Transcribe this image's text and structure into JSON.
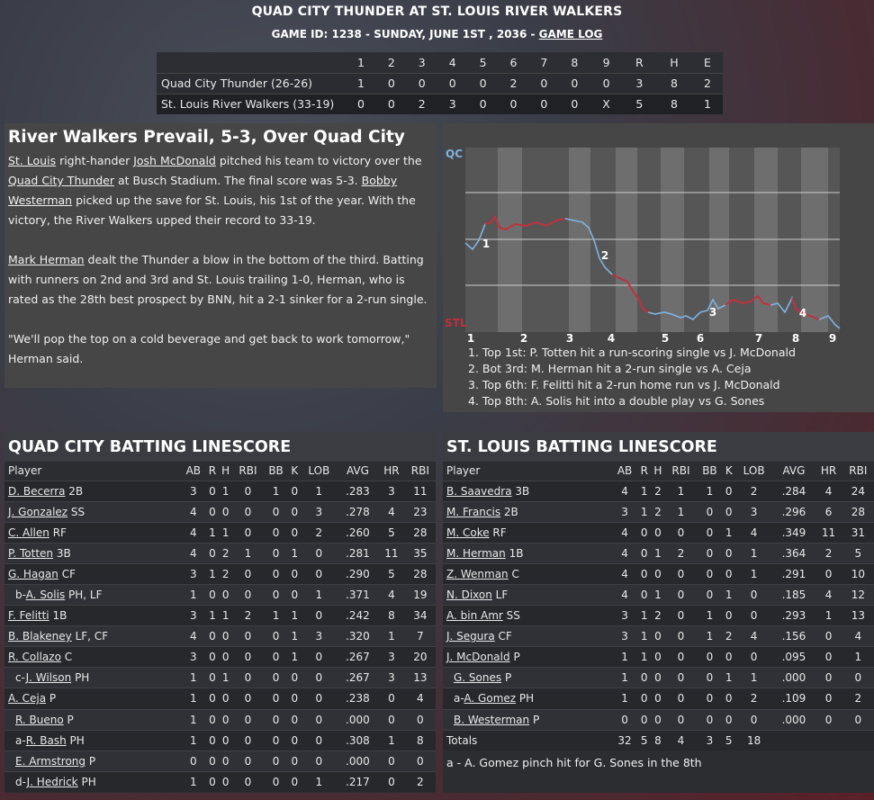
{
  "header": {
    "title": "QUAD CITY THUNDER AT ST. LOUIS RIVER WALKERS",
    "subtitle": "GAME ID: 1238 - SUNDAY, JUNE 1ST , 2036 - ",
    "game_log": "GAME LOG"
  },
  "linescore": {
    "headers": [
      "",
      "1",
      "2",
      "3",
      "4",
      "5",
      "6",
      "7",
      "8",
      "9",
      "R",
      "H",
      "E"
    ],
    "rows": [
      {
        "team": "Quad City Thunder (26-26)",
        "cells": [
          "1",
          "0",
          "0",
          "0",
          "0",
          "2",
          "0",
          "0",
          "0",
          "3",
          "8",
          "2"
        ]
      },
      {
        "team": "St. Louis River Walkers (33-19)",
        "cells": [
          "0",
          "0",
          "2",
          "3",
          "0",
          "0",
          "0",
          "0",
          "X",
          "5",
          "8",
          "1"
        ]
      }
    ]
  },
  "story": {
    "headline": "River Walkers Prevail, 5-3, Over Quad City",
    "p1": [
      {
        "t": "St. Louis",
        "link": true
      },
      {
        "t": " right-hander ",
        "link": false
      },
      {
        "t": "Josh McDonald",
        "link": true
      },
      {
        "t": " pitched his team to victory over the ",
        "link": false
      },
      {
        "t": "Quad City Thunder",
        "link": true
      },
      {
        "t": " at Busch Stadium. The final score was 5-3. ",
        "link": false
      },
      {
        "t": "Bobby Westerman",
        "link": true
      },
      {
        "t": " picked up the save for St. Louis, his 1st of the year. With the victory, the River Walkers upped their record to 33-19.",
        "link": false
      }
    ],
    "p2": [
      {
        "t": "Mark Herman",
        "link": true
      },
      {
        "t": " dealt the Thunder a blow in the bottom of the third. Batting with runners on 2nd and 3rd and St. Louis trailing 1-0, Herman, who is rated as the 28th best prospect by BNN, hit a 2-1 sinker for a 2-run single.",
        "link": false
      }
    ],
    "p3": "\"We'll pop the top on a cold beverage and get back to work tomorrow,\" Herman said."
  },
  "win_prob": {
    "label_top": "QC",
    "label_bottom": "STL",
    "innings": [
      "1",
      "2",
      "3",
      "4",
      "5",
      "6",
      "7",
      "8",
      "9"
    ],
    "markers": [
      "1",
      "2",
      "3",
      "4"
    ],
    "colors": {
      "qc": "#7fb3e0",
      "stl": "#c0303c"
    },
    "notes": [
      "1. Top 1st: P. Totten hit a run-scoring single vs J. McDonald",
      "2. Bot 3rd: M. Herman hit a 2-run single vs A. Ceja",
      "3. Top 6th: F. Felitti hit a 2-run home run vs J. McDonald",
      "4. Top 8th: A. Solis hit into a double play vs G. Sones"
    ]
  },
  "qc_batting": {
    "title": "QUAD CITY BATTING LINESCORE",
    "columns": [
      "Player",
      "AB",
      "R",
      "H",
      "RBI",
      "BB",
      "K",
      "LOB",
      "AVG",
      "HR",
      "RBI"
    ],
    "rows": [
      {
        "prefix": "",
        "name": "D. Becerra",
        "pos": " 2B",
        "ind": false,
        "stats": [
          "3",
          "0",
          "1",
          "0",
          "1",
          "0",
          "1",
          ".283",
          "3",
          "11"
        ]
      },
      {
        "prefix": "",
        "name": "J. Gonzalez",
        "pos": " SS",
        "ind": false,
        "stats": [
          "4",
          "0",
          "0",
          "0",
          "0",
          "0",
          "3",
          ".278",
          "4",
          "23"
        ]
      },
      {
        "prefix": "",
        "name": "C. Allen",
        "pos": " RF",
        "ind": false,
        "stats": [
          "4",
          "1",
          "1",
          "0",
          "0",
          "0",
          "2",
          ".260",
          "5",
          "28"
        ]
      },
      {
        "prefix": "",
        "name": "P. Totten",
        "pos": " 3B",
        "ind": false,
        "stats": [
          "4",
          "0",
          "2",
          "1",
          "0",
          "1",
          "0",
          ".281",
          "11",
          "35"
        ]
      },
      {
        "prefix": "",
        "name": "G. Hagan",
        "pos": " CF",
        "ind": false,
        "stats": [
          "3",
          "1",
          "2",
          "0",
          "0",
          "0",
          "0",
          ".290",
          "5",
          "28"
        ]
      },
      {
        "prefix": "b-",
        "name": "A. Solis",
        "pos": " PH, LF",
        "ind": true,
        "stats": [
          "1",
          "0",
          "0",
          "0",
          "0",
          "0",
          "1",
          ".371",
          "4",
          "19"
        ]
      },
      {
        "prefix": "",
        "name": "F. Felitti",
        "pos": " 1B",
        "ind": false,
        "stats": [
          "3",
          "1",
          "1",
          "2",
          "1",
          "1",
          "0",
          ".242",
          "8",
          "34"
        ]
      },
      {
        "prefix": "",
        "name": "B. Blakeney",
        "pos": " LF, CF",
        "ind": false,
        "stats": [
          "4",
          "0",
          "0",
          "0",
          "0",
          "1",
          "3",
          ".320",
          "1",
          "7"
        ]
      },
      {
        "prefix": "",
        "name": "R. Collazo",
        "pos": " C",
        "ind": false,
        "stats": [
          "3",
          "0",
          "0",
          "0",
          "0",
          "1",
          "0",
          ".267",
          "3",
          "20"
        ]
      },
      {
        "prefix": "c-",
        "name": "J. Wilson",
        "pos": " PH",
        "ind": true,
        "stats": [
          "1",
          "0",
          "1",
          "0",
          "0",
          "0",
          "0",
          ".267",
          "3",
          "13"
        ]
      },
      {
        "prefix": "",
        "name": "A. Ceja",
        "pos": " P",
        "ind": false,
        "stats": [
          "1",
          "0",
          "0",
          "0",
          "0",
          "0",
          "0",
          ".238",
          "0",
          "4"
        ]
      },
      {
        "prefix": "",
        "name": "R. Bueno",
        "pos": " P",
        "ind": true,
        "stats": [
          "1",
          "0",
          "0",
          "0",
          "0",
          "0",
          "0",
          ".000",
          "0",
          "0"
        ]
      },
      {
        "prefix": "a-",
        "name": "R. Bash",
        "pos": " PH",
        "ind": true,
        "stats": [
          "1",
          "0",
          "0",
          "0",
          "0",
          "0",
          "0",
          ".308",
          "1",
          "8"
        ]
      },
      {
        "prefix": "",
        "name": "E. Armstrong",
        "pos": " P",
        "ind": true,
        "stats": [
          "0",
          "0",
          "0",
          "0",
          "0",
          "0",
          "0",
          ".000",
          "0",
          "0"
        ]
      },
      {
        "prefix": "d-",
        "name": "J. Hedrick",
        "pos": " PH",
        "ind": true,
        "stats": [
          "1",
          "0",
          "0",
          "0",
          "0",
          "0",
          "1",
          ".217",
          "0",
          "2"
        ]
      }
    ]
  },
  "stl_batting": {
    "title": "ST. LOUIS BATTING LINESCORE",
    "columns": [
      "Player",
      "AB",
      "R",
      "H",
      "RBI",
      "BB",
      "K",
      "LOB",
      "AVG",
      "HR",
      "RBI"
    ],
    "rows": [
      {
        "prefix": "",
        "name": "B. Saavedra",
        "pos": " 3B",
        "ind": false,
        "stats": [
          "4",
          "1",
          "2",
          "1",
          "1",
          "0",
          "2",
          ".284",
          "4",
          "24"
        ]
      },
      {
        "prefix": "",
        "name": "M. Francis",
        "pos": " 2B",
        "ind": false,
        "stats": [
          "3",
          "1",
          "2",
          "1",
          "0",
          "0",
          "3",
          ".296",
          "6",
          "28"
        ]
      },
      {
        "prefix": "",
        "name": "M. Coke",
        "pos": " RF",
        "ind": false,
        "stats": [
          "4",
          "0",
          "0",
          "0",
          "0",
          "1",
          "4",
          ".349",
          "11",
          "31"
        ]
      },
      {
        "prefix": "",
        "name": "M. Herman",
        "pos": " 1B",
        "ind": false,
        "stats": [
          "4",
          "0",
          "1",
          "2",
          "0",
          "0",
          "1",
          ".364",
          "2",
          "5"
        ]
      },
      {
        "prefix": "",
        "name": "Z. Wenman",
        "pos": " C",
        "ind": false,
        "stats": [
          "4",
          "0",
          "0",
          "0",
          "0",
          "0",
          "1",
          ".291",
          "0",
          "10"
        ]
      },
      {
        "prefix": "",
        "name": "N. Dixon",
        "pos": " LF",
        "ind": false,
        "stats": [
          "4",
          "0",
          "1",
          "0",
          "0",
          "1",
          "0",
          ".185",
          "4",
          "12"
        ]
      },
      {
        "prefix": "",
        "name": "A. bin Amr",
        "pos": " SS",
        "ind": false,
        "stats": [
          "3",
          "1",
          "2",
          "0",
          "1",
          "0",
          "0",
          ".293",
          "1",
          "13"
        ]
      },
      {
        "prefix": "",
        "name": "J. Segura",
        "pos": " CF",
        "ind": false,
        "stats": [
          "3",
          "1",
          "0",
          "0",
          "1",
          "2",
          "4",
          ".156",
          "0",
          "4"
        ]
      },
      {
        "prefix": "",
        "name": "J. McDonald",
        "pos": " P",
        "ind": false,
        "stats": [
          "1",
          "1",
          "0",
          "0",
          "0",
          "0",
          "0",
          ".095",
          "0",
          "1"
        ]
      },
      {
        "prefix": "",
        "name": "G. Sones",
        "pos": " P",
        "ind": true,
        "stats": [
          "1",
          "0",
          "0",
          "0",
          "0",
          "1",
          "1",
          ".000",
          "0",
          "0"
        ]
      },
      {
        "prefix": "a-",
        "name": "A. Gomez",
        "pos": " PH",
        "ind": true,
        "stats": [
          "1",
          "0",
          "0",
          "0",
          "0",
          "0",
          "2",
          ".109",
          "0",
          "2"
        ]
      },
      {
        "prefix": "",
        "name": "B. Westerman",
        "pos": " P",
        "ind": true,
        "stats": [
          "0",
          "0",
          "0",
          "0",
          "0",
          "0",
          "0",
          ".000",
          "0",
          "0"
        ]
      }
    ],
    "totals": {
      "label": "Totals",
      "stats": [
        "32",
        "5",
        "8",
        "4",
        "3",
        "5",
        "18",
        "",
        "",
        ""
      ]
    },
    "note": "a - A. Gomez pinch hit for G. Sones in the 8th"
  }
}
